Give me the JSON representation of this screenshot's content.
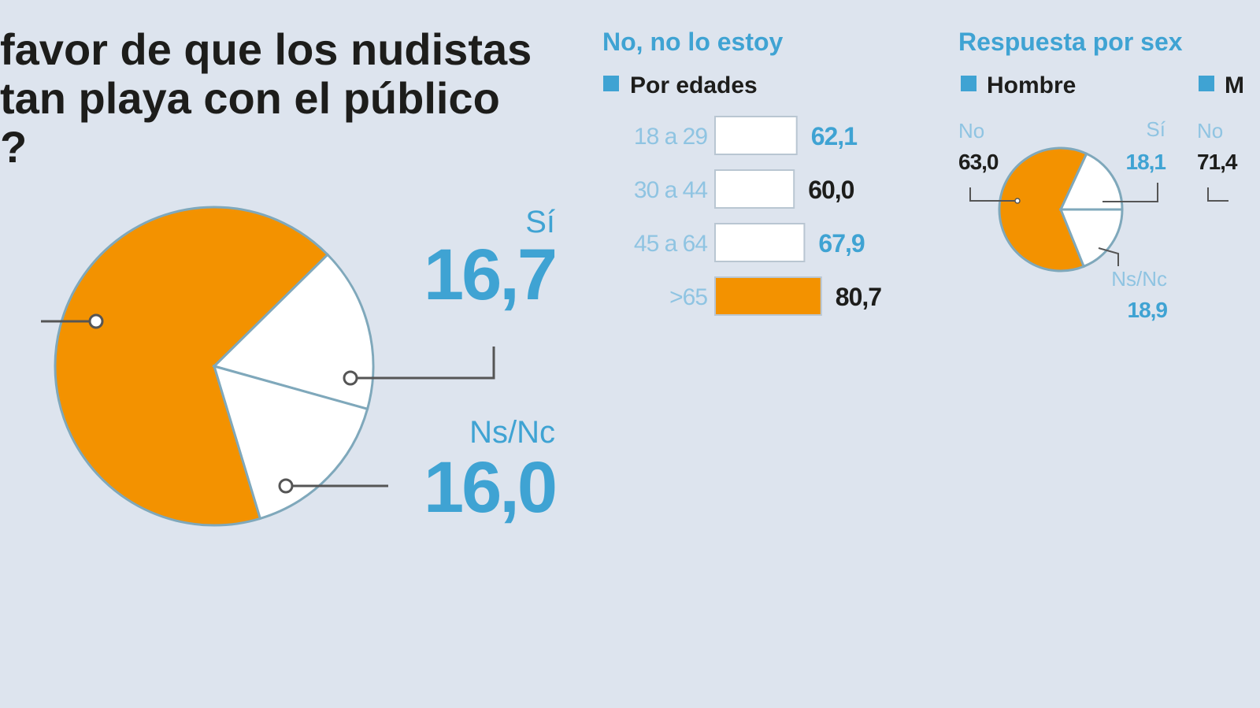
{
  "chart_data": [
    {
      "type": "pie",
      "title_lines": [
        "favor de que los nudistas",
        "tan playa con el público",
        "?"
      ],
      "categories": [
        "No",
        "Sí",
        "Ns/Nc"
      ],
      "values": [
        67.3,
        16.7,
        16.0
      ],
      "value_labels": [
        null,
        "16,7",
        "16,0"
      ],
      "colors": [
        "#f39200",
        "#ffffff",
        "#ffffff"
      ]
    },
    {
      "type": "bar",
      "title": "No, no lo estoy",
      "legend": "Por edades",
      "categories": [
        "18 a 29",
        "30 a 44",
        "45 a 64",
        ">65"
      ],
      "values": [
        62.1,
        60.0,
        67.9,
        80.7
      ],
      "value_labels": [
        "62,1",
        "60,0",
        "67,9",
        "80,7"
      ],
      "colors": [
        "#ffffff",
        "#ffffff",
        "#ffffff",
        "#f39200"
      ],
      "label_colors": [
        "#3fa3d3",
        "#1d1d1b",
        "#3fa3d3",
        "#1d1d1b"
      ]
    },
    {
      "type": "pie",
      "title": "Respuesta por sex",
      "categories": [
        "No",
        "Sí",
        "Ns/Nc"
      ],
      "colors": [
        "#f39200",
        "#ffffff",
        "#ffffff"
      ],
      "series": [
        {
          "name": "Hombre",
          "values": [
            63.0,
            18.1,
            18.9
          ],
          "value_labels": [
            "63,0",
            "18,1",
            "18,9"
          ]
        },
        {
          "name": "M",
          "values": [
            71.4,
            null,
            null
          ],
          "value_labels": [
            "71,4",
            null,
            null
          ]
        }
      ]
    }
  ]
}
